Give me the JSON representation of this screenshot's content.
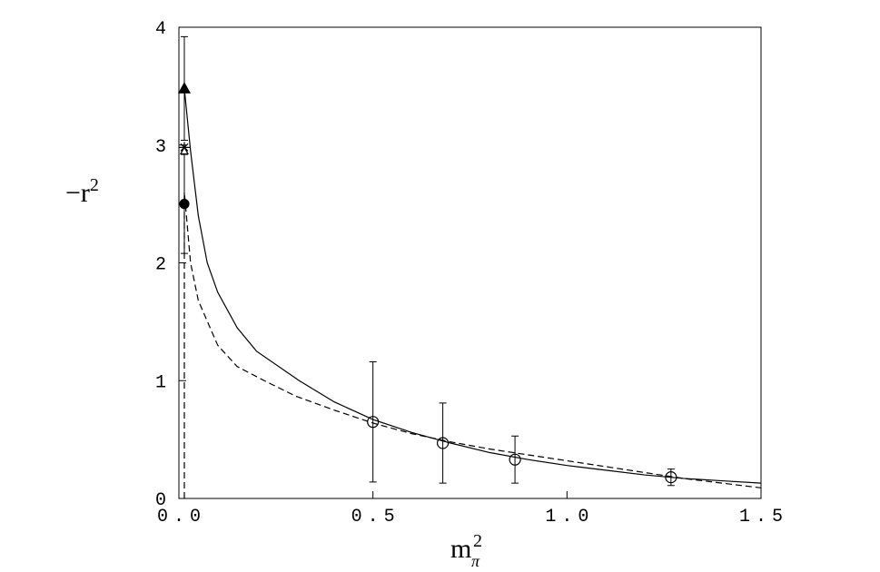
{
  "chart_data": {
    "type": "scatter",
    "color": "#000000",
    "x_label": {
      "base": "m",
      "sup": "2",
      "sub": "π"
    },
    "y_label": {
      "base": "−r",
      "sup": "2"
    },
    "xlim": [
      0,
      1.5
    ],
    "ylim": [
      0,
      4
    ],
    "xticks": [
      {
        "value": 0,
        "label": "0.0"
      },
      0.5,
      {
        "value": 1,
        "label": "1.0"
      },
      1.5
    ],
    "yticks": [
      0,
      1,
      2,
      3,
      4
    ],
    "series": [
      {
        "style": "circle-open",
        "x": [
          0.5,
          0.68,
          0.866,
          1.268
        ],
        "values": [
          0.65,
          0.47,
          0.33,
          0.18
        ],
        "errors": [
          0.51,
          0.34,
          0.2,
          0.07
        ]
      },
      {
        "style": "triangle-filled",
        "x": [
          0.014
        ],
        "values": [
          3.48
        ],
        "errors": [
          0.44
        ]
      },
      {
        "style": "star",
        "x": [
          0.014
        ],
        "values": [
          2.98
        ]
      },
      {
        "style": "triangle-open",
        "x": [
          0.014
        ],
        "values": [
          2.95
        ]
      },
      {
        "style": "circle-filled",
        "x": [
          0.014
        ],
        "values": [
          2.5
        ],
        "errors": [
          0.42
        ]
      },
      {
        "style": "solid",
        "x": [
          0.014,
          0.03,
          0.05,
          0.073,
          0.1,
          0.15,
          0.2,
          0.31,
          0.4,
          0.5,
          0.6,
          0.7,
          0.8,
          0.9,
          1.0,
          1.1,
          1.2,
          1.3,
          1.4,
          1.5
        ],
        "values": [
          3.48,
          2.95,
          2.4,
          2.0,
          1.75,
          1.45,
          1.25,
          1.0,
          0.82,
          0.67,
          0.56,
          0.47,
          0.39,
          0.33,
          0.28,
          0.24,
          0.2,
          0.17,
          0.15,
          0.13
        ]
      },
      {
        "style": "dashed",
        "x": [
          0.014,
          0.014,
          0.03,
          0.05,
          0.1,
          0.15,
          0.22,
          0.3,
          0.4,
          0.5,
          0.6,
          0.7,
          0.8,
          0.9,
          1.0,
          1.1,
          1.2,
          1.3,
          1.4,
          1.5
        ],
        "values": [
          0,
          2.6,
          2.0,
          1.68,
          1.3,
          1.12,
          1.0,
          0.87,
          0.75,
          0.64,
          0.55,
          0.48,
          0.42,
          0.37,
          0.32,
          0.27,
          0.22,
          0.17,
          0.13,
          0.09
        ]
      }
    ]
  }
}
